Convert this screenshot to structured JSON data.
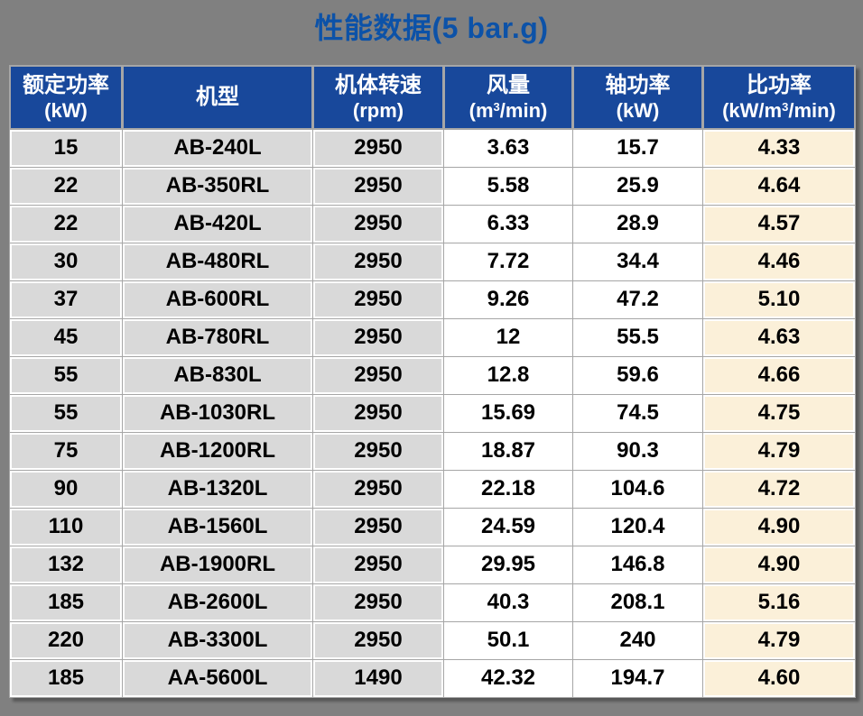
{
  "title": "性能数据(5 bar.g)",
  "colors": {
    "page_background": "#808080",
    "title_text": "#0c52a8",
    "header_background": "#18489b",
    "header_text": "#ffffff",
    "gray_cell_background": "#d9d9d9",
    "white_cell_background": "#ffffff",
    "cream_cell_background": "#fbf0d9",
    "gridline": "#a6a6a6",
    "data_text": "#000000"
  },
  "table": {
    "headers": [
      {
        "title": "额定功率",
        "unit": [
          {
            "t": "(kW)"
          }
        ]
      },
      {
        "title": "机型",
        "unit": []
      },
      {
        "title": "机体转速",
        "unit": [
          {
            "t": "(rpm)"
          }
        ]
      },
      {
        "title": "风量",
        "unit": [
          {
            "t": "(m"
          },
          {
            "t": "3",
            "sup": true
          },
          {
            "t": "/min)"
          }
        ]
      },
      {
        "title": "轴功率",
        "unit": [
          {
            "t": "(kW)"
          }
        ]
      },
      {
        "title": "比功率",
        "unit": [
          {
            "t": "(kW/m"
          },
          {
            "t": "3",
            "sup": true
          },
          {
            "t": "/min)"
          }
        ]
      }
    ],
    "rows": [
      [
        "15",
        "AB-240L",
        "2950",
        "3.63",
        "15.7",
        "4.33"
      ],
      [
        "22",
        "AB-350RL",
        "2950",
        "5.58",
        "25.9",
        "4.64"
      ],
      [
        "22",
        "AB-420L",
        "2950",
        "6.33",
        "28.9",
        "4.57"
      ],
      [
        "30",
        "AB-480RL",
        "2950",
        "7.72",
        "34.4",
        "4.46"
      ],
      [
        "37",
        "AB-600RL",
        "2950",
        "9.26",
        "47.2",
        "5.10"
      ],
      [
        "45",
        "AB-780RL",
        "2950",
        "12",
        "55.5",
        "4.63"
      ],
      [
        "55",
        "AB-830L",
        "2950",
        "12.8",
        "59.6",
        "4.66"
      ],
      [
        "55",
        "AB-1030RL",
        "2950",
        "15.69",
        "74.5",
        "4.75"
      ],
      [
        "75",
        "AB-1200RL",
        "2950",
        "18.87",
        "90.3",
        "4.79"
      ],
      [
        "90",
        "AB-1320L",
        "2950",
        "22.18",
        "104.6",
        "4.72"
      ],
      [
        "110",
        "AB-1560L",
        "2950",
        "24.59",
        "120.4",
        "4.90"
      ],
      [
        "132",
        "AB-1900RL",
        "2950",
        "29.95",
        "146.8",
        "4.90"
      ],
      [
        "185",
        "AB-2600L",
        "2950",
        "40.3",
        "208.1",
        "5.16"
      ],
      [
        "220",
        "AB-3300L",
        "2950",
        "50.1",
        "240",
        "4.79"
      ],
      [
        "185",
        "AA-5600L",
        "1490",
        "42.32",
        "194.7",
        "4.60"
      ]
    ]
  },
  "chart_data": {
    "type": "table",
    "title": "性能数据(5 bar.g)",
    "columns": [
      "额定功率 (kW)",
      "机型",
      "机体转速 (rpm)",
      "风量 (m3/min)",
      "轴功率 (kW)",
      "比功率 (kW/m3/min)"
    ],
    "rows": [
      [
        15,
        "AB-240L",
        2950,
        3.63,
        15.7,
        4.33
      ],
      [
        22,
        "AB-350RL",
        2950,
        5.58,
        25.9,
        4.64
      ],
      [
        22,
        "AB-420L",
        2950,
        6.33,
        28.9,
        4.57
      ],
      [
        30,
        "AB-480RL",
        2950,
        7.72,
        34.4,
        4.46
      ],
      [
        37,
        "AB-600RL",
        2950,
        9.26,
        47.2,
        5.1
      ],
      [
        45,
        "AB-780RL",
        2950,
        12,
        55.5,
        4.63
      ],
      [
        55,
        "AB-830L",
        2950,
        12.8,
        59.6,
        4.66
      ],
      [
        55,
        "AB-1030RL",
        2950,
        15.69,
        74.5,
        4.75
      ],
      [
        75,
        "AB-1200RL",
        2950,
        18.87,
        90.3,
        4.79
      ],
      [
        90,
        "AB-1320L",
        2950,
        22.18,
        104.6,
        4.72
      ],
      [
        110,
        "AB-1560L",
        2950,
        24.59,
        120.4,
        4.9
      ],
      [
        132,
        "AB-1900RL",
        2950,
        29.95,
        146.8,
        4.9
      ],
      [
        185,
        "AB-2600L",
        2950,
        40.3,
        208.1,
        5.16
      ],
      [
        220,
        "AB-3300L",
        2950,
        50.1,
        240,
        4.79
      ],
      [
        185,
        "AA-5600L",
        1490,
        42.32,
        194.7,
        4.6
      ]
    ]
  }
}
